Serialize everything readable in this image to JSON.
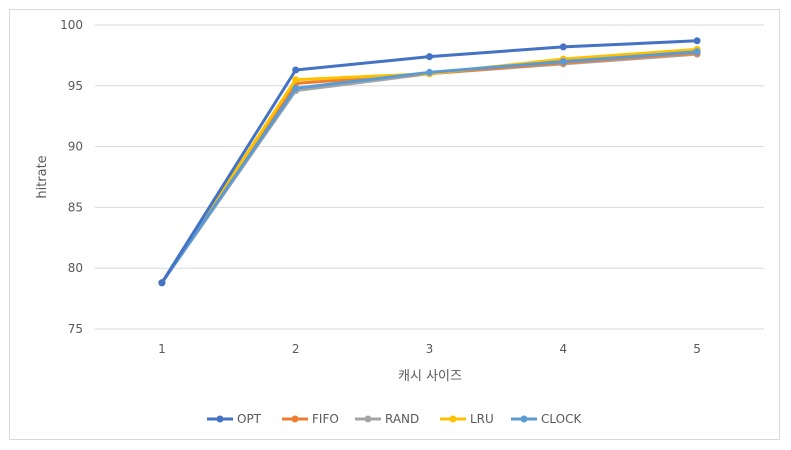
{
  "chart_data": {
    "type": "line",
    "title": "",
    "xlabel": "캐시 사이즈",
    "ylabel": "hitrate",
    "categories": [
      "1",
      "2",
      "3",
      "4",
      "5"
    ],
    "ylim": [
      75,
      100
    ],
    "yticks": [
      "75",
      "80",
      "85",
      "90",
      "95",
      "100"
    ],
    "grid": true,
    "legend_position": "bottom",
    "series": [
      {
        "name": "OPT",
        "color": "#4472c4",
        "values": [
          78.8,
          96.3,
          97.4,
          98.2,
          98.7
        ]
      },
      {
        "name": "FIFO",
        "color": "#ed7d31",
        "values": [
          78.8,
          95.2,
          96.0,
          96.9,
          97.7
        ]
      },
      {
        "name": "RAND",
        "color": "#a5a5a5",
        "values": [
          78.8,
          94.6,
          96.0,
          96.8,
          97.6
        ]
      },
      {
        "name": "LRU",
        "color": "#ffc000",
        "values": [
          78.8,
          95.5,
          96.0,
          97.2,
          98.0
        ]
      },
      {
        "name": "CLOCK",
        "color": "#5b9bd5",
        "values": [
          78.8,
          94.8,
          96.1,
          97.0,
          97.8
        ]
      }
    ]
  }
}
